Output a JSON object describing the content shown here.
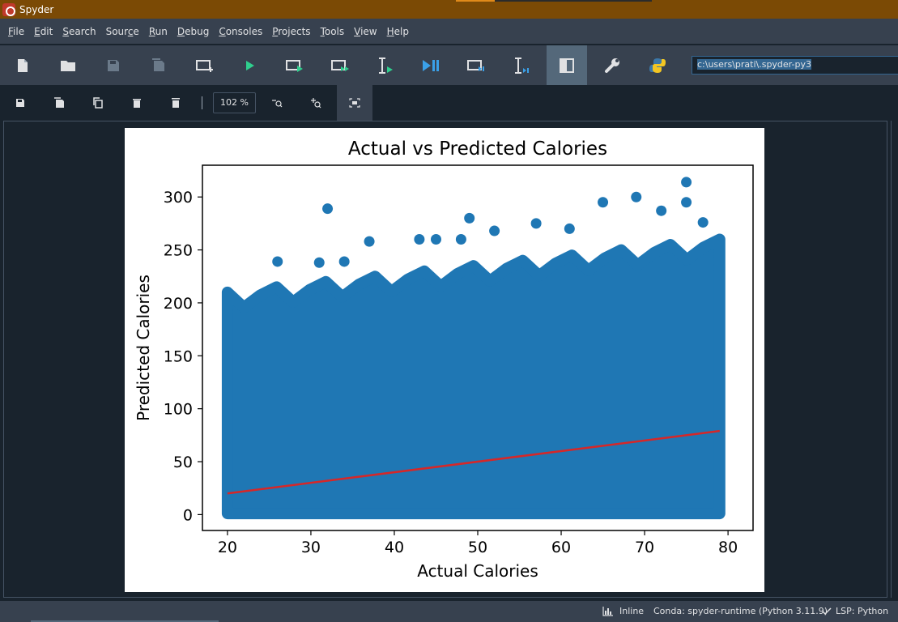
{
  "window": {
    "title": "Spyder"
  },
  "menu": [
    {
      "u": "F",
      "rest": "ile"
    },
    {
      "u": "E",
      "rest": "dit"
    },
    {
      "u": "S",
      "rest": "earch"
    },
    {
      "u": "",
      "pre": "Sour",
      "uu": "c",
      "rest": "e"
    },
    {
      "u": "R",
      "rest": "un"
    },
    {
      "u": "D",
      "rest": "ebug"
    },
    {
      "u": "C",
      "rest": "onsoles"
    },
    {
      "u": "P",
      "rest": "rojects"
    },
    {
      "u": "T",
      "rest": "ools"
    },
    {
      "u": "V",
      "rest": "iew"
    },
    {
      "u": "H",
      "rest": "elp"
    }
  ],
  "toolbar": {
    "path": "c:\\users\\prati\\.spyder-py3",
    "icons": [
      "new-file-icon",
      "open-file-icon",
      "save-icon",
      "save-all-icon",
      "new-cell-icon",
      "run-icon",
      "run-cell-icon",
      "run-cell-advance-icon",
      "run-selection-icon",
      "debug-icon",
      "debug-cell-icon",
      "debug-selection-icon",
      "maximize-pane-icon",
      "preferences-icon",
      "python-path-icon"
    ]
  },
  "plot_toolbar": {
    "zoom": "102 %"
  },
  "status": {
    "inline": "Inline",
    "conda": "Conda: spyder-runtime (Python 3.11.9)",
    "lsp": "LSP: Python"
  },
  "chart_data": {
    "type": "scatter",
    "title": "Actual vs Predicted Calories",
    "xlabel": "Actual Calories",
    "ylabel": "Predicted Calories",
    "xlim": [
      17,
      83
    ],
    "ylim": [
      -15,
      330
    ],
    "xticks": [
      20,
      30,
      40,
      50,
      60,
      70,
      80
    ],
    "yticks": [
      0,
      50,
      100,
      150,
      200,
      250,
      300
    ],
    "point_color": "#1f77b4",
    "line_color": "#d62728",
    "scatter_band": {
      "x": [
        20,
        79
      ],
      "y_min": 1,
      "y_max_lower": 200,
      "y_max_upper": 250
    },
    "outliers": [
      {
        "x": 32,
        "y": 289
      },
      {
        "x": 49,
        "y": 280
      },
      {
        "x": 52,
        "y": 268
      },
      {
        "x": 65,
        "y": 295
      },
      {
        "x": 69,
        "y": 300
      },
      {
        "x": 72,
        "y": 287
      },
      {
        "x": 75,
        "y": 314
      },
      {
        "x": 75,
        "y": 295
      },
      {
        "x": 77,
        "y": 276
      },
      {
        "x": 43,
        "y": 260
      },
      {
        "x": 45,
        "y": 260
      },
      {
        "x": 48,
        "y": 260
      },
      {
        "x": 57,
        "y": 275
      },
      {
        "x": 61,
        "y": 270
      },
      {
        "x": 37,
        "y": 258
      },
      {
        "x": 26,
        "y": 239
      },
      {
        "x": 31,
        "y": 238
      },
      {
        "x": 34,
        "y": 239
      }
    ],
    "fit_line": {
      "x": [
        20,
        79
      ],
      "y": [
        20,
        79
      ]
    }
  }
}
